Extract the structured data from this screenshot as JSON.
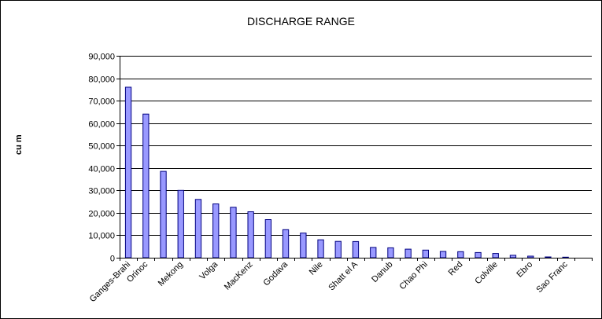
{
  "chart_data": {
    "type": "bar",
    "title": "DISCHARGE RANGE",
    "xlabel": "",
    "ylabel": "cu m",
    "ylim": [
      0,
      90000
    ],
    "y_ticks": [
      "0",
      "10,000",
      "20,000",
      "30,000",
      "40,000",
      "50,000",
      "60,000",
      "70,000",
      "80,000",
      "90,000"
    ],
    "grid": true,
    "legend": "none",
    "bar_color": "#9999FF",
    "bar_outline_color": "#000080",
    "category_labels_visible": [
      "Ganges-Brahi",
      "Orinoc",
      "Mekong",
      "Volga",
      "MacKenz",
      "Godava",
      "Nile",
      "Shatt el A",
      "Danub",
      "Chao Phi",
      "Red",
      "Colville",
      "Ebro",
      "Sao Franc"
    ],
    "values": [
      76000,
      64000,
      38500,
      30000,
      26000,
      24000,
      22500,
      20500,
      17000,
      12500,
      11000,
      8000,
      7300,
      7200,
      4600,
      4400,
      3800,
      3400,
      2800,
      2700,
      2300,
      1900,
      1100,
      700,
      350,
      250,
      0
    ]
  }
}
